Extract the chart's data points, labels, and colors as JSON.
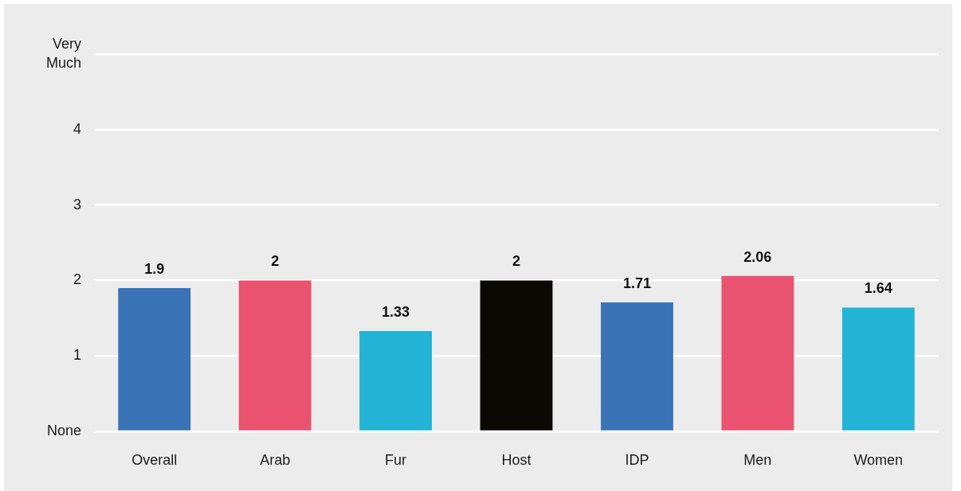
{
  "chart_data": {
    "type": "bar",
    "categories": [
      "Overall",
      "Arab",
      "Fur",
      "Host",
      "IDP",
      "Men",
      "Women"
    ],
    "values": [
      1.9,
      2,
      1.33,
      2,
      1.71,
      2.06,
      1.64
    ],
    "colors": [
      "#3b73b7",
      "#e9536f",
      "#23b3d6",
      "#0a0904",
      "#3b73b7",
      "#e9536f",
      "#23b3d6"
    ],
    "ylim": [
      0,
      5
    ],
    "yticks": [
      {
        "value": 0,
        "label": "None"
      },
      1,
      2,
      3,
      4,
      {
        "value": 5,
        "label": "Very Much"
      }
    ],
    "grid": "y",
    "data_labels": true
  }
}
